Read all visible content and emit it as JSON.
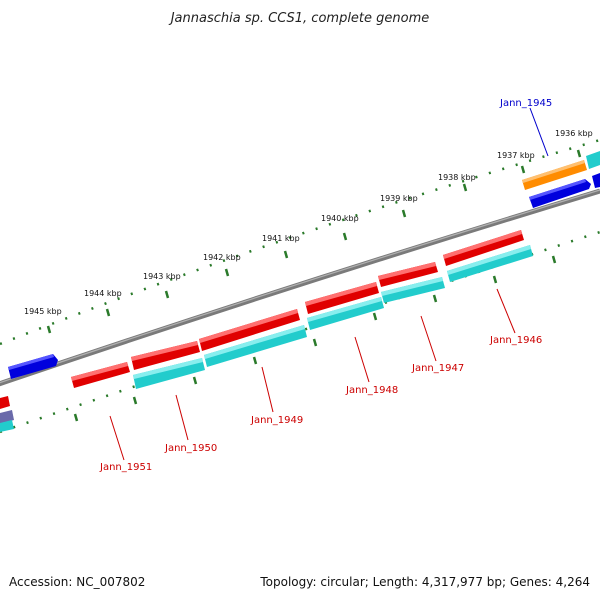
{
  "title": "Jannaschia sp. CCS1, complete genome",
  "footer": {
    "accession": "Accession: NC_007802",
    "stats": "Topology: circular; Length: 4,317,977 bp; Genes: 4,264"
  },
  "kbp_markers": [
    {
      "label": "1936 kbp"
    },
    {
      "label": "1937 kbp"
    },
    {
      "label": "1938 kbp"
    },
    {
      "label": "1939 kbp"
    },
    {
      "label": "1940 kbp"
    },
    {
      "label": "1941 kbp"
    },
    {
      "label": "1942 kbp"
    },
    {
      "label": "1943 kbp"
    },
    {
      "label": "1944 kbp"
    },
    {
      "label": "1945 kbp"
    }
  ],
  "gene_labels": [
    {
      "text": "Jann_1945",
      "color": "#0000cc"
    },
    {
      "text": "Jann_1946",
      "color": "#cc0000"
    },
    {
      "text": "Jann_1947",
      "color": "#cc0000"
    },
    {
      "text": "Jann_1948",
      "color": "#cc0000"
    },
    {
      "text": "Jann_1949",
      "color": "#cc0000"
    },
    {
      "text": "Jann_1950",
      "color": "#cc0000"
    },
    {
      "text": "Jann_1951",
      "color": "#cc0000"
    }
  ],
  "colors": {
    "backbone": "#808080",
    "gene_red": "#e00000",
    "gene_cyan": "#22cccc",
    "gene_blue": "#0000dd",
    "gene_orange": "#ff8c00",
    "tick_green": "#2a7a2a"
  }
}
